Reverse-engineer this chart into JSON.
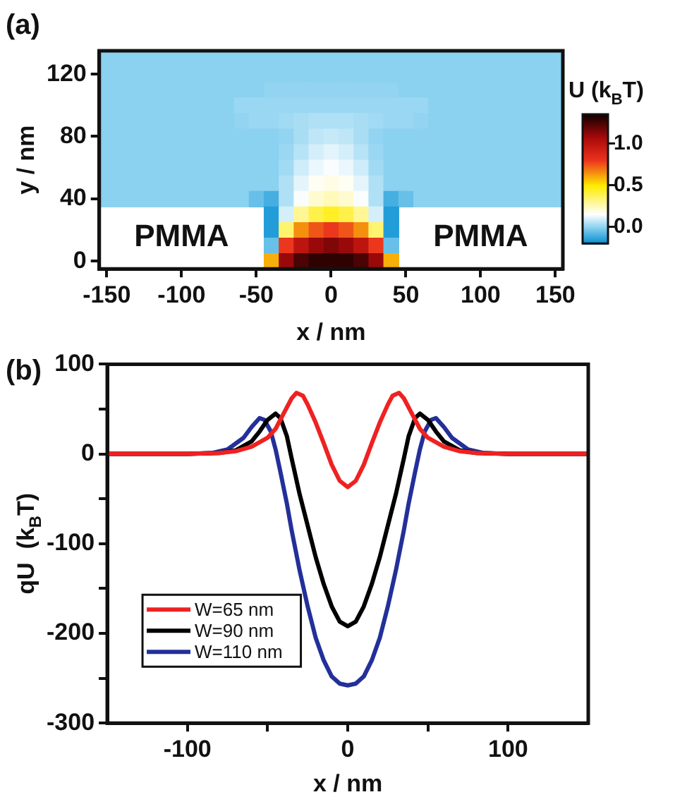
{
  "chart_data": [
    {
      "type": "heatmap",
      "title": "(a)",
      "xlabel": "x / nm",
      "ylabel": "y / nm",
      "clabel": "U (k$_{B}$T)",
      "clim": [
        -0.2,
        1.35
      ],
      "cticks": [
        {
          "value": 0,
          "label": "0.0"
        },
        {
          "value": 0.5,
          "label": "0.5"
        },
        {
          "value": 1.0,
          "label": "1.0"
        }
      ],
      "annotations": [
        "PMMA",
        "PMMA"
      ],
      "categories": [
        "-150",
        null,
        null,
        null,
        null,
        "-100",
        null,
        null,
        null,
        null,
        "-50",
        null,
        null,
        null,
        null,
        "0",
        null,
        null,
        null,
        null,
        "50",
        null,
        null,
        null,
        null,
        "100",
        null,
        null,
        null,
        null,
        "150"
      ],
      "y_categories": [
        null,
        "120",
        null,
        null,
        null,
        "80",
        null,
        null,
        null,
        "40",
        null,
        null,
        null,
        "0"
      ],
      "cells": [
        [
          0,
          0,
          0,
          0,
          0,
          0,
          0,
          0,
          0,
          0,
          0,
          0,
          0,
          0,
          0,
          0,
          0,
          0,
          0,
          0,
          0,
          0,
          0,
          0,
          0,
          0,
          0,
          0,
          0,
          0,
          0
        ],
        [
          0,
          0,
          0,
          0,
          0,
          0,
          0,
          0,
          0,
          0,
          0,
          0,
          0,
          0,
          0,
          0,
          0,
          0,
          0,
          0,
          0,
          0,
          0,
          0,
          0,
          0,
          0,
          0,
          0,
          0,
          0
        ],
        [
          0,
          0,
          0,
          0,
          0,
          0,
          0,
          0,
          0,
          0,
          0,
          0.01,
          0.01,
          0.01,
          0.01,
          0.01,
          0.01,
          0.01,
          0.01,
          0.01,
          0,
          0,
          0,
          0,
          0,
          0,
          0,
          0,
          0,
          0,
          0
        ],
        [
          0,
          0,
          0,
          0,
          0,
          0,
          0,
          0,
          0,
          0.02,
          0.02,
          0.02,
          0.02,
          0.02,
          0.02,
          0.02,
          0.02,
          0.02,
          0.02,
          0.02,
          0.02,
          0.02,
          0,
          0,
          0,
          0,
          0,
          0,
          0,
          0,
          0
        ],
        [
          0,
          0,
          0,
          0,
          0,
          0,
          0,
          0,
          0,
          0.01,
          0.02,
          0.02,
          0.03,
          0.04,
          0.05,
          0.05,
          0.05,
          0.04,
          0.03,
          0.02,
          0.02,
          0.01,
          0,
          0,
          0,
          0,
          0,
          0,
          0,
          0,
          0
        ],
        [
          0,
          0,
          0,
          0,
          0,
          0,
          0,
          0,
          0,
          0,
          0,
          0,
          0.01,
          0.04,
          0.07,
          0.08,
          0.07,
          0.04,
          0.01,
          0,
          0,
          0,
          0,
          0,
          0,
          0,
          0,
          0,
          0,
          0,
          0
        ],
        [
          0,
          0,
          0,
          0,
          0,
          0,
          0,
          0,
          0,
          0,
          0,
          0,
          0.02,
          0.06,
          0.1,
          0.12,
          0.1,
          0.06,
          0.02,
          0,
          0,
          0,
          0,
          0,
          0,
          0,
          0,
          0,
          0,
          0,
          0
        ],
        [
          0,
          0,
          0,
          0,
          0,
          0,
          0,
          0,
          0,
          0,
          0,
          0,
          0.03,
          0.09,
          0.13,
          0.15,
          0.13,
          0.09,
          0.03,
          0,
          0,
          0,
          0,
          0,
          0,
          0,
          0,
          0,
          0,
          0,
          0
        ],
        [
          0,
          0,
          0,
          0,
          0,
          0,
          0,
          0,
          0,
          0,
          0,
          0,
          0.05,
          0.12,
          0.17,
          0.19,
          0.17,
          0.12,
          0.05,
          0,
          0,
          0,
          0,
          0,
          0,
          0,
          0,
          0,
          0,
          0,
          0
        ],
        [
          0,
          0,
          0,
          0,
          0,
          0,
          0,
          0,
          0,
          0,
          -0.05,
          -0.1,
          0.05,
          0.15,
          0.22,
          0.25,
          0.22,
          0.15,
          0.05,
          -0.1,
          -0.05,
          0,
          0,
          0,
          0,
          0,
          0,
          0,
          0,
          0,
          0
        ],
        [
          null,
          null,
          null,
          null,
          null,
          null,
          null,
          null,
          null,
          null,
          null,
          -0.15,
          0.1,
          0.3,
          0.4,
          0.45,
          0.4,
          0.3,
          0.1,
          -0.15,
          null,
          null,
          null,
          null,
          null,
          null,
          null,
          null,
          null,
          null,
          null
        ],
        [
          null,
          null,
          null,
          null,
          null,
          null,
          null,
          null,
          null,
          null,
          null,
          -0.15,
          0.35,
          0.65,
          0.75,
          0.8,
          0.75,
          0.65,
          0.35,
          -0.15,
          null,
          null,
          null,
          null,
          null,
          null,
          null,
          null,
          null,
          null,
          null
        ],
        [
          null,
          null,
          null,
          null,
          null,
          null,
          null,
          null,
          null,
          null,
          null,
          -0.05,
          0.8,
          1.0,
          1.1,
          1.15,
          1.1,
          1.0,
          0.8,
          -0.05,
          null,
          null,
          null,
          null,
          null,
          null,
          null,
          null,
          null,
          null,
          null
        ],
        [
          null,
          null,
          null,
          null,
          null,
          null,
          null,
          null,
          null,
          null,
          null,
          0.6,
          1.1,
          1.25,
          1.3,
          1.3,
          1.3,
          1.25,
          1.1,
          0.6,
          null,
          null,
          null,
          null,
          null,
          null,
          null,
          null,
          null,
          null,
          null
        ]
      ]
    },
    {
      "type": "line",
      "title": "(b)",
      "xlabel": "x / nm",
      "ylabel": "qU  (k$_{B}$T)",
      "xlim": [
        -150,
        150
      ],
      "xticks": [
        -100,
        {
          "value": -50,
          "label": null
        },
        0,
        {
          "value": 50,
          "label": null
        },
        100
      ],
      "ylim": [
        -300,
        100
      ],
      "yticks": [
        -300,
        {
          "value": -250,
          "label": null
        },
        -200,
        {
          "value": -150,
          "label": null
        },
        -100,
        {
          "value": -50,
          "label": null
        },
        0,
        {
          "value": 50,
          "label": null
        },
        100
      ],
      "legend": "bottom left",
      "marker": "none",
      "series": [
        {
          "name": "W=65 nm",
          "color": "#ee2222",
          "x": [
            -150,
            -100,
            -80,
            -70,
            -60,
            -50,
            -45,
            -40,
            -35,
            -32,
            -28,
            -25,
            -20,
            -15,
            -10,
            -5,
            0,
            5,
            10,
            15,
            20,
            25,
            28,
            32,
            35,
            40,
            45,
            50,
            60,
            70,
            80,
            100,
            150
          ],
          "values": [
            0,
            0,
            1,
            3,
            8,
            18,
            28,
            45,
            62,
            68,
            65,
            55,
            35,
            12,
            -12,
            -30,
            -37,
            -30,
            -12,
            12,
            35,
            55,
            65,
            68,
            62,
            45,
            28,
            18,
            8,
            3,
            1,
            0,
            0
          ]
        },
        {
          "name": "W=90 nm",
          "color": "#000000",
          "x": [
            -150,
            -100,
            -80,
            -70,
            -60,
            -55,
            -50,
            -45,
            -42,
            -38,
            -35,
            -30,
            -25,
            -20,
            -15,
            -10,
            -5,
            0,
            5,
            10,
            15,
            20,
            25,
            30,
            35,
            38,
            42,
            45,
            50,
            55,
            60,
            70,
            80,
            100,
            150
          ],
          "values": [
            0,
            0,
            1,
            4,
            14,
            25,
            38,
            45,
            40,
            20,
            -5,
            -45,
            -80,
            -115,
            -145,
            -170,
            -187,
            -192,
            -187,
            -170,
            -145,
            -115,
            -80,
            -45,
            -5,
            20,
            40,
            45,
            38,
            25,
            14,
            4,
            1,
            0,
            0
          ]
        },
        {
          "name": "W=110 nm",
          "color": "#233099",
          "x": [
            -150,
            -100,
            -85,
            -75,
            -65,
            -60,
            -55,
            -52,
            -48,
            -45,
            -42,
            -38,
            -35,
            -30,
            -25,
            -20,
            -15,
            -10,
            -5,
            0,
            5,
            10,
            15,
            20,
            25,
            30,
            35,
            38,
            42,
            45,
            48,
            52,
            55,
            60,
            65,
            75,
            85,
            100,
            150
          ],
          "values": [
            0,
            0,
            1,
            5,
            18,
            30,
            40,
            38,
            25,
            5,
            -20,
            -55,
            -85,
            -130,
            -170,
            -205,
            -230,
            -248,
            -256,
            -258,
            -256,
            -248,
            -230,
            -205,
            -170,
            -130,
            -85,
            -55,
            -20,
            5,
            25,
            38,
            40,
            30,
            18,
            5,
            1,
            0,
            0
          ]
        }
      ]
    }
  ]
}
